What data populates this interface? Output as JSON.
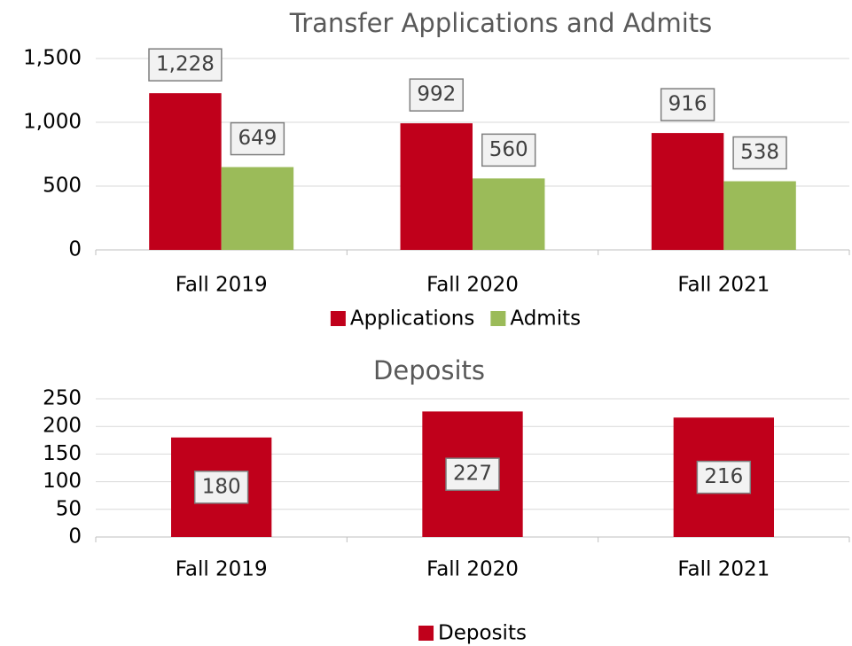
{
  "chart_data": [
    {
      "type": "bar",
      "title": "Transfer Applications and Admits",
      "categories": [
        "Fall 2019",
        "Fall 2020",
        "Fall 2021"
      ],
      "series": [
        {
          "name": "Applications",
          "color": "#c0001b",
          "values": [
            1228,
            992,
            916
          ],
          "value_labels": [
            "1,228",
            "992",
            "916"
          ]
        },
        {
          "name": "Admits",
          "color": "#9bbb59",
          "values": [
            649,
            560,
            538
          ],
          "value_labels": [
            "649",
            "560",
            "538"
          ]
        }
      ],
      "ylim": [
        0,
        1500
      ],
      "yticks": [
        0,
        500,
        {
          "value": 1000,
          "label": "1,000"
        },
        {
          "value": 1500,
          "label": "1,500"
        }
      ],
      "grid": true,
      "legend": "bottom"
    },
    {
      "type": "bar",
      "title": "Deposits",
      "categories": [
        "Fall 2019",
        "Fall 2020",
        "Fall 2021"
      ],
      "series": [
        {
          "name": "Deposits",
          "color": "#c0001b",
          "values": [
            180,
            227,
            216
          ]
        }
      ],
      "ylim": [
        0,
        250
      ],
      "yticks": [
        0,
        50,
        100,
        150,
        200,
        250
      ],
      "grid": true,
      "legend": "bottom"
    }
  ]
}
